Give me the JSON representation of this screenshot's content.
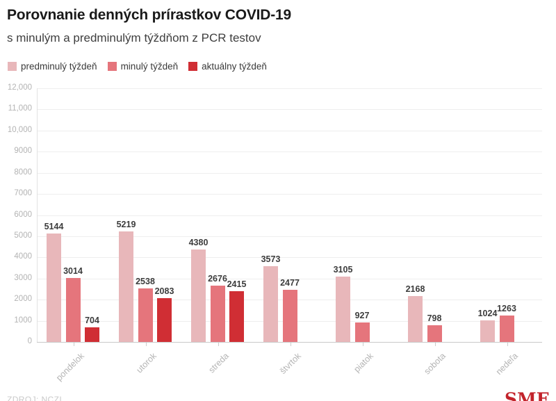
{
  "header": {
    "title": "Porovnanie denných prírastkov COVID-19",
    "subtitle": "s minulým a predminulým týždňom z PCR testov"
  },
  "legend": [
    {
      "label": "predminulý týždeň",
      "color": "#e8b7ba"
    },
    {
      "label": "minulý týždeň",
      "color": "#e5757c"
    },
    {
      "label": "aktuálny týždeň",
      "color": "#d02e34"
    }
  ],
  "footer": {
    "source": "ZDROJ: NCZI",
    "logo": "SME"
  },
  "chart_data": {
    "type": "bar",
    "title": "Porovnanie denných prírastkov COVID-19",
    "subtitle": "s minulým a predminulým týždňom z PCR testov",
    "categories": [
      "pondelok",
      "utorok",
      "streda",
      "štvrtok",
      "piatok",
      "sobota",
      "nedeľa"
    ],
    "series": [
      {
        "name": "predminulý týždeň",
        "color": "#e8b7ba",
        "values": [
          5144,
          5219,
          4380,
          3573,
          3105,
          2168,
          1024
        ]
      },
      {
        "name": "minulý týždeň",
        "color": "#e5757c",
        "values": [
          3014,
          2538,
          2676,
          2477,
          927,
          798,
          1263
        ]
      },
      {
        "name": "aktuálny týždeň",
        "color": "#d02e34",
        "values": [
          704,
          2083,
          2415,
          null,
          null,
          null,
          null
        ]
      }
    ],
    "ylim": [
      0,
      12000
    ],
    "ytick_step": 1000,
    "ytick_labels": [
      "0",
      "1000",
      "2000",
      "3000",
      "4000",
      "5000",
      "6000",
      "7000",
      "8000",
      "9000",
      "10,000",
      "11,000",
      "12,000"
    ],
    "grid": "horizontal",
    "legend_position": "top",
    "value_labels": true
  }
}
